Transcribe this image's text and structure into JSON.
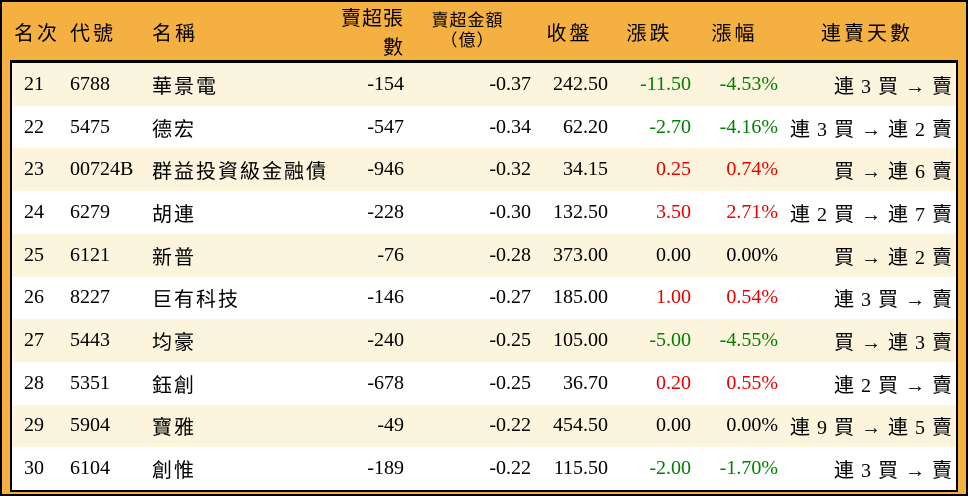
{
  "columns": {
    "rank": "名次",
    "code": "代號",
    "name": "名稱",
    "volume": "賣超張數",
    "amount_line1": "賣超金額",
    "amount_line2": "（億）",
    "close": "收盤",
    "change": "漲跌",
    "pct": "漲幅",
    "days": "連賣天數"
  },
  "colors": {
    "header_bg": "#F5B042",
    "row_alt_bg": "#FCF4DC",
    "row_bg": "#FFFFFF",
    "up_red": "#E60000",
    "down_green": "#008000",
    "flat_black": "#000000",
    "border": "#000000"
  },
  "chart_data": {
    "type": "table",
    "title": "賣超排行 21-30",
    "columns": [
      "名次",
      "代號",
      "名稱",
      "賣超張數",
      "賣超金額（億）",
      "收盤",
      "漲跌",
      "漲幅",
      "連賣天數"
    ],
    "rows": [
      [
        "21",
        "6788",
        "華景電",
        "-154",
        "-0.37",
        "242.50",
        "-11.50",
        "-4.53%",
        "連 3 買 → 賣"
      ],
      [
        "22",
        "5475",
        "德宏",
        "-547",
        "-0.34",
        "62.20",
        "-2.70",
        "-4.16%",
        "連 3 買 → 連 2 賣"
      ],
      [
        "23",
        "00724B",
        "群益投資級金融債",
        "-946",
        "-0.32",
        "34.15",
        "0.25",
        "0.74%",
        "買 → 連 6 賣"
      ],
      [
        "24",
        "6279",
        "胡連",
        "-228",
        "-0.30",
        "132.50",
        "3.50",
        "2.71%",
        "連 2 買 → 連 7 賣"
      ],
      [
        "25",
        "6121",
        "新普",
        "-76",
        "-0.28",
        "373.00",
        "0.00",
        "0.00%",
        "買 → 連 2 賣"
      ],
      [
        "26",
        "8227",
        "巨有科技",
        "-146",
        "-0.27",
        "185.00",
        "1.00",
        "0.54%",
        "連 3 買 → 賣"
      ],
      [
        "27",
        "5443",
        "均豪",
        "-240",
        "-0.25",
        "105.00",
        "-5.00",
        "-4.55%",
        "買 → 連 3 賣"
      ],
      [
        "28",
        "5351",
        "鈺創",
        "-678",
        "-0.25",
        "36.70",
        "0.20",
        "0.55%",
        "連 2 買 → 賣"
      ],
      [
        "29",
        "5904",
        "寶雅",
        "-49",
        "-0.22",
        "454.50",
        "0.00",
        "0.00%",
        "連 9 買 → 連 5 賣"
      ],
      [
        "30",
        "6104",
        "創惟",
        "-189",
        "-0.22",
        "115.50",
        "-2.00",
        "-1.70%",
        "連 3 買 → 賣"
      ]
    ]
  },
  "rows": [
    {
      "rank": "21",
      "code": "6788",
      "name": "華景電",
      "volume": "-154",
      "amount": "-0.37",
      "close": "242.50",
      "change": "-11.50",
      "pct": "-4.53%",
      "days": "連 3 買 → 賣",
      "trend": "down"
    },
    {
      "rank": "22",
      "code": "5475",
      "name": "德宏",
      "volume": "-547",
      "amount": "-0.34",
      "close": "62.20",
      "change": "-2.70",
      "pct": "-4.16%",
      "days": "連 3 買 → 連 2 賣",
      "trend": "down"
    },
    {
      "rank": "23",
      "code": "00724B",
      "name": "群益投資級金融債",
      "volume": "-946",
      "amount": "-0.32",
      "close": "34.15",
      "change": "0.25",
      "pct": "0.74%",
      "days": "買 → 連 6 賣",
      "trend": "up"
    },
    {
      "rank": "24",
      "code": "6279",
      "name": "胡連",
      "volume": "-228",
      "amount": "-0.30",
      "close": "132.50",
      "change": "3.50",
      "pct": "2.71%",
      "days": "連 2 買 → 連 7 賣",
      "trend": "up"
    },
    {
      "rank": "25",
      "code": "6121",
      "name": "新普",
      "volume": "-76",
      "amount": "-0.28",
      "close": "373.00",
      "change": "0.00",
      "pct": "0.00%",
      "days": "買 → 連 2 賣",
      "trend": "flat"
    },
    {
      "rank": "26",
      "code": "8227",
      "name": "巨有科技",
      "volume": "-146",
      "amount": "-0.27",
      "close": "185.00",
      "change": "1.00",
      "pct": "0.54%",
      "days": "連 3 買 → 賣",
      "trend": "up"
    },
    {
      "rank": "27",
      "code": "5443",
      "name": "均豪",
      "volume": "-240",
      "amount": "-0.25",
      "close": "105.00",
      "change": "-5.00",
      "pct": "-4.55%",
      "days": "買 → 連 3 賣",
      "trend": "down"
    },
    {
      "rank": "28",
      "code": "5351",
      "name": "鈺創",
      "volume": "-678",
      "amount": "-0.25",
      "close": "36.70",
      "change": "0.20",
      "pct": "0.55%",
      "days": "連 2 買 → 賣",
      "trend": "up"
    },
    {
      "rank": "29",
      "code": "5904",
      "name": "寶雅",
      "volume": "-49",
      "amount": "-0.22",
      "close": "454.50",
      "change": "0.00",
      "pct": "0.00%",
      "days": "連 9 買 → 連 5 賣",
      "trend": "flat"
    },
    {
      "rank": "30",
      "code": "6104",
      "name": "創惟",
      "volume": "-189",
      "amount": "-0.22",
      "close": "115.50",
      "change": "-2.00",
      "pct": "-1.70%",
      "days": "連 3 買 → 賣",
      "trend": "down"
    }
  ]
}
